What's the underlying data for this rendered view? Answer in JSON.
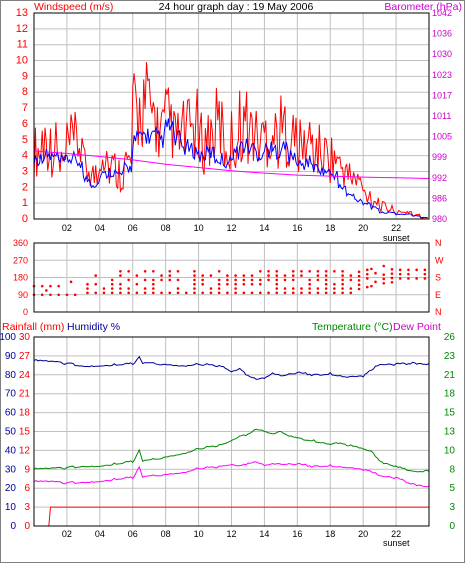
{
  "header": {
    "windspeed_label": "Windspeed (m/s)",
    "title": "24 hour graph day : 19 May 2006",
    "barometer_label": "Barometer (hPa)"
  },
  "middle": {
    "rainfall_label": "Rainfall (mm)",
    "humidity_label": "Humidity %",
    "temperature_label": "Temperature (°C)",
    "dewpoint_label": "Dew Point"
  },
  "sunset_label": "sunset",
  "colors": {
    "background": "#ffffff",
    "grid": "#c0c0c0",
    "frame": "#000000",
    "wind_gust": "#ff0000",
    "wind_avg": "#0000ff",
    "barometer": "#ff00ff",
    "direction": "#ff0000",
    "humidity": "#000099",
    "temperature": "#008800",
    "dewpoint": "#ff00ff",
    "rainfall": "#ff0000",
    "wind_axis_text": "#ff0000",
    "baro_axis_text": "#cc00cc",
    "temp_axis_text": "#008800",
    "hum_axis_text": "#000099",
    "rain_axis_text": "#ff0000"
  },
  "chart_data": [
    {
      "id": "wind-barometer",
      "type": "line",
      "title": "24 hour graph day : 19 May 2006",
      "x_tick_labels": [
        "02",
        "04",
        "06",
        "08",
        "10",
        "12",
        "14",
        "16",
        "18",
        "20",
        "22"
      ],
      "xlim": [
        0,
        24
      ],
      "left_axis": {
        "label": "Windspeed (m/s)",
        "ylim": [
          0,
          13
        ],
        "ticks": [
          "0",
          "1",
          "2",
          "3",
          "4",
          "5",
          "6",
          "7",
          "8",
          "9",
          "10",
          "11",
          "12",
          "13"
        ]
      },
      "right_axis": {
        "label": "Barometer (hPa)",
        "ylim": [
          980,
          1042
        ],
        "ticks": [
          "980",
          "986",
          "992",
          "999",
          "1005",
          "1011",
          "1017",
          "1023",
          "1030",
          "1036",
          "1042"
        ]
      },
      "series": [
        {
          "name": "Windspeed (m/s)",
          "axis": "left",
          "x": [
            0.0,
            0.5,
            1.0,
            1.5,
            2.0,
            2.5,
            3.0,
            3.5,
            4.0,
            4.5,
            5.0,
            5.5,
            6.0,
            6.5,
            7.0,
            7.5,
            8.0,
            8.5,
            9.0,
            9.5,
            10.0,
            10.5,
            11.0,
            11.5,
            12.0,
            12.5,
            13.0,
            13.5,
            14.0,
            14.5,
            15.0,
            15.5,
            16.0,
            16.5,
            17.0,
            17.5,
            18.0,
            18.5,
            19.0,
            19.5,
            20.0,
            20.5,
            21.0,
            21.5,
            22.0,
            22.5,
            23.0,
            23.5
          ],
          "gust": [
            5.5,
            6.5,
            5.8,
            4.5,
            6.0,
            6.2,
            4.2,
            3.5,
            5.8,
            4.2,
            3.8,
            4.5,
            8.5,
            9.5,
            8.5,
            7.2,
            7.8,
            6.5,
            7.0,
            7.5,
            6.2,
            6.8,
            7.6,
            5.8,
            6.5,
            7.8,
            7.2,
            6.5,
            7.0,
            6.8,
            7.2,
            6.5,
            5.8,
            6.2,
            5.5,
            5.2,
            5.0,
            4.2,
            3.5,
            3.0,
            2.0,
            1.5,
            1.0,
            0.8,
            0.5,
            0.6,
            0.3,
            0.1
          ],
          "avg": [
            3.8,
            4.0,
            3.9,
            3.6,
            3.8,
            3.6,
            2.5,
            2.2,
            2.8,
            3.0,
            2.8,
            3.2,
            5.0,
            5.3,
            5.2,
            5.0,
            5.8,
            5.0,
            4.5,
            4.3,
            4.0,
            4.2,
            3.8,
            3.6,
            4.2,
            4.6,
            4.5,
            4.1,
            4.4,
            4.3,
            4.5,
            3.9,
            3.4,
            3.6,
            3.2,
            3.0,
            2.8,
            2.0,
            1.5,
            1.2,
            1.0,
            0.7,
            0.4,
            0.4,
            0.3,
            0.3,
            0.2,
            0.1
          ]
        },
        {
          "name": "Barometer (hPa)",
          "axis": "right",
          "x": [
            0,
            2,
            4,
            6,
            8,
            10,
            12,
            14,
            16,
            18,
            20,
            22,
            24
          ],
          "values": [
            1000.5,
            999.7,
            998.8,
            997.8,
            996.5,
            995.5,
            994.5,
            993.8,
            993.2,
            992.9,
            992.6,
            992.4,
            992.2
          ]
        }
      ]
    },
    {
      "id": "wind-direction",
      "type": "scatter",
      "xlim": [
        0,
        24
      ],
      "left_axis": {
        "ylim": [
          0,
          360
        ],
        "ticks": [
          "0",
          "90",
          "180",
          "270",
          "360"
        ]
      },
      "right_axis": {
        "ticks": [
          "N",
          "E",
          "S",
          "W",
          "N"
        ]
      },
      "series": [
        {
          "name": "Wind direction",
          "x": [
            0.0,
            0.5,
            1.0,
            1.5,
            2.0,
            2.5,
            3.0,
            3.5,
            4.0,
            4.5,
            5.0,
            5.5,
            6.0,
            6.5,
            7.0,
            7.5,
            8.0,
            8.5,
            9.0,
            9.5,
            10.0,
            10.5,
            11.0,
            11.5,
            12.0,
            12.5,
            13.0,
            13.5,
            14.0,
            14.5,
            15.0,
            15.5,
            16.0,
            16.5,
            17.0,
            17.5,
            18.0,
            18.5,
            19.0,
            19.5,
            20.0,
            20.5,
            21.0,
            21.5,
            22.0,
            22.5,
            23.0,
            23.5
          ],
          "low": [
            90,
            90,
            90,
            90,
            90,
            90,
            100,
            100,
            100,
            100,
            100,
            100,
            100,
            100,
            100,
            100,
            100,
            100,
            100,
            100,
            100,
            100,
            100,
            100,
            100,
            100,
            100,
            100,
            100,
            100,
            100,
            100,
            100,
            100,
            100,
            100,
            100,
            100,
            100,
            120,
            130,
            135,
            150,
            155,
            175,
            175,
            175,
            175
          ],
          "high": [
            140,
            150,
            145,
            155,
            160,
            170,
            180,
            200,
            210,
            210,
            220,
            230,
            225,
            230,
            215,
            210,
            220,
            215,
            210,
            215,
            205,
            210,
            215,
            210,
            205,
            210,
            220,
            225,
            225,
            230,
            225,
            220,
            215,
            230,
            225,
            225,
            215,
            220,
            210,
            225,
            230,
            230,
            240,
            230,
            230,
            230,
            230,
            225
          ]
        }
      ]
    },
    {
      "id": "rain-humidity-temp",
      "type": "line",
      "xlim": [
        0,
        24
      ],
      "x_tick_labels": [
        "02",
        "04",
        "06",
        "08",
        "10",
        "12",
        "14",
        "16",
        "18",
        "20",
        "22"
      ],
      "axes": {
        "humidity": {
          "label": "Humidity %",
          "ylim": [
            0,
            100
          ],
          "ticks": [
            "0",
            "10",
            "20",
            "30",
            "40",
            "50",
            "60",
            "70",
            "80",
            "90",
            "100"
          ]
        },
        "rainfall": {
          "label": "Rainfall (mm)",
          "ylim": [
            0,
            30
          ],
          "ticks": [
            "0",
            "3",
            "6",
            "9",
            "12",
            "15",
            "18",
            "21",
            "24",
            "27",
            "30"
          ]
        },
        "temperature": {
          "label": "Temperature (°C)",
          "ylim": [
            0,
            26
          ],
          "ticks": [
            "0",
            "3",
            "5",
            "8",
            "10",
            "13",
            "15",
            "18",
            "21",
            "23",
            "26"
          ]
        }
      },
      "series": [
        {
          "name": "Humidity %",
          "x": [
            0,
            1,
            2,
            3,
            4,
            5,
            6,
            6.4,
            6.6,
            7,
            8,
            9,
            10,
            11,
            11.5,
            12,
            12.5,
            13,
            13.5,
            14,
            14.5,
            15,
            16,
            17,
            18,
            19,
            20,
            20.5,
            21,
            22,
            23,
            24
          ],
          "values": [
            87.5,
            87,
            86,
            84.5,
            85,
            85.5,
            86,
            89,
            86,
            86,
            85.5,
            85,
            85.5,
            85,
            84,
            81,
            83,
            79.5,
            78,
            78.5,
            81,
            79,
            81,
            80,
            80.5,
            79,
            79.5,
            83,
            85,
            85.5,
            86,
            86
          ]
        },
        {
          "name": "Temperature (°C)",
          "x": [
            0,
            1,
            2,
            3,
            4,
            5,
            6,
            6.4,
            6.6,
            7,
            8,
            9,
            10,
            11,
            11.5,
            12,
            12.5,
            13,
            13.5,
            14,
            14.5,
            15,
            15.5,
            16,
            17,
            18,
            18.5,
            19,
            20,
            20.5,
            21,
            22,
            23,
            24
          ],
          "values": [
            7.8,
            7.9,
            8.0,
            8.2,
            8.3,
            8.6,
            8.9,
            10.3,
            8.9,
            9.0,
            9.5,
            10.0,
            10.6,
            11.0,
            11.2,
            11.6,
            12.3,
            12.6,
            13.4,
            13.1,
            12.7,
            12.9,
            12.3,
            12.1,
            11.7,
            11.3,
            11.5,
            11.2,
            10.5,
            10.2,
            8.8,
            8.3,
            7.6,
            7.5
          ]
        },
        {
          "name": "Dew Point",
          "x": [
            0,
            1,
            2,
            3,
            4,
            5,
            6,
            6.4,
            6.6,
            7,
            8,
            9,
            10,
            11,
            11.5,
            12,
            12.5,
            13,
            13.5,
            14,
            14.5,
            15,
            16,
            17,
            18,
            19,
            20,
            20.5,
            21,
            22,
            23,
            24
          ],
          "values": [
            6.1,
            6.1,
            5.9,
            6.0,
            6.2,
            6.5,
            6.7,
            8.0,
            6.7,
            6.8,
            7.1,
            7.4,
            7.9,
            8.1,
            8.2,
            8.3,
            8.2,
            8.6,
            8.9,
            8.4,
            8.6,
            8.4,
            8.5,
            8.2,
            8.3,
            8.1,
            7.8,
            7.6,
            6.8,
            6.6,
            5.7,
            5.5
          ]
        },
        {
          "name": "Rainfall (mm)",
          "x": [
            0,
            0.9,
            1.0,
            24
          ],
          "values": [
            0,
            0,
            3,
            3
          ]
        }
      ]
    }
  ]
}
